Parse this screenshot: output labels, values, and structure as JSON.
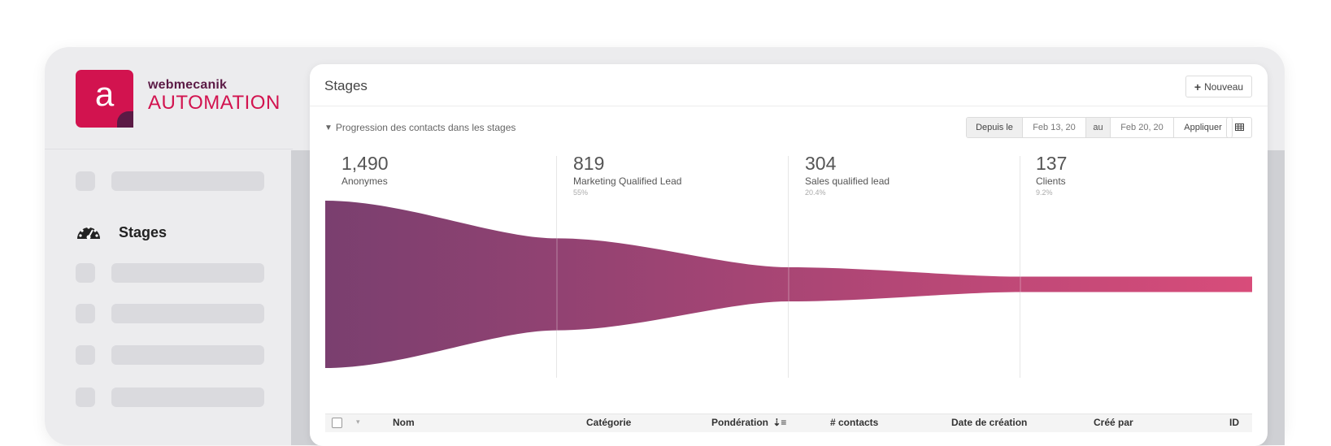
{
  "brand": {
    "logo_letter": "a",
    "name_top": "webmecanik",
    "name_bottom": "AUTOMATION"
  },
  "sidebar": {
    "active_item": {
      "label": "Stages",
      "icon": "dashboard-gauge-icon"
    }
  },
  "page": {
    "title": "Stages",
    "new_button_label": "Nouveau"
  },
  "progression": {
    "title": "Progression des contacts dans les stages",
    "filter": {
      "since_label": "Depuis le",
      "date_from": "Feb 13, 20",
      "to_label": "au",
      "date_to": "Feb 20, 20",
      "apply_label": "Appliquer"
    }
  },
  "stages": [
    {
      "count": "1,490",
      "name": "Anonymes",
      "percent": ""
    },
    {
      "count": "819",
      "name": "Marketing Qualified Lead",
      "percent": "55%"
    },
    {
      "count": "304",
      "name": "Sales qualified lead",
      "percent": "20.4%"
    },
    {
      "count": "137",
      "name": "Clients",
      "percent": "9.2%"
    }
  ],
  "funnel": {
    "values": [
      1490,
      819,
      304,
      137
    ],
    "color_start": "#7a3f6f",
    "color_end": "#d84c7a"
  },
  "table": {
    "columns": [
      "Nom",
      "Catégorie",
      "Pondération",
      "# contacts",
      "Date de création",
      "Créé par",
      "ID"
    ],
    "sort_icon": "sort-descending-icon"
  }
}
